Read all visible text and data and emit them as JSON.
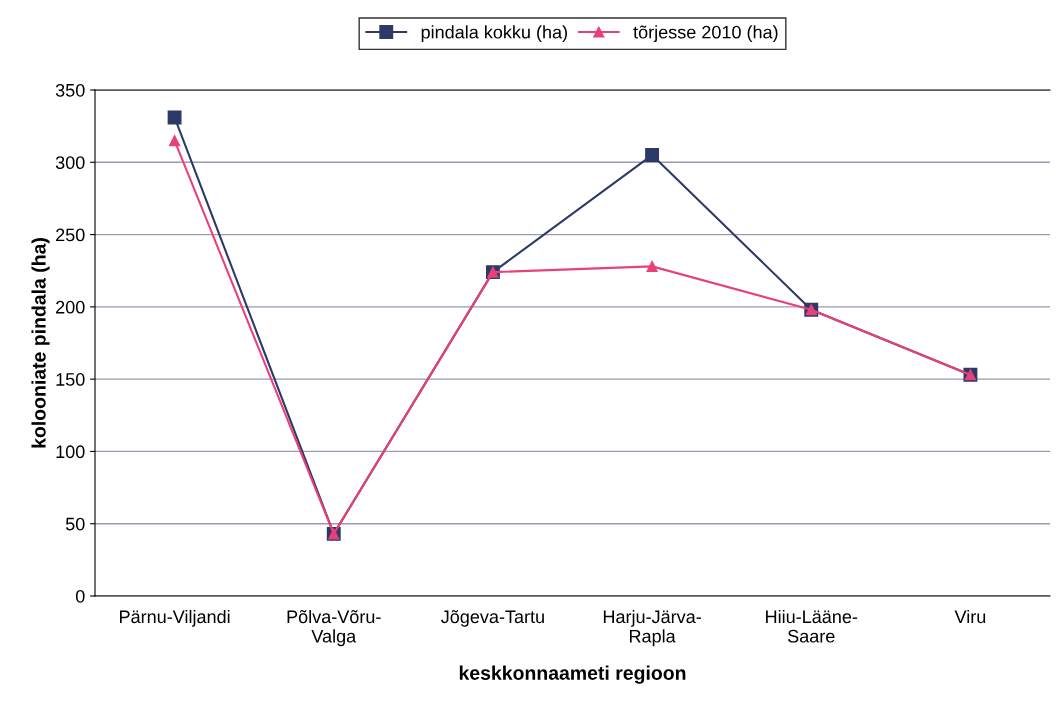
{
  "chart_data": {
    "type": "line",
    "xlabel": "keskkonnaameti regioon",
    "ylabel": "kolooniate pindala (ha)",
    "categories": [
      "Pärnu-Viljandi",
      "Põlva-Võru-\nValga",
      "Jõgeva-Tartu",
      "Harju-Järva-\nRapla",
      "Hiiu-Lääne-\nSaare",
      "Viru"
    ],
    "series": [
      {
        "name": "pindala kokku (ha)",
        "color": "#2b3a67",
        "marker": "square",
        "values": [
          331,
          43,
          224,
          305,
          198,
          153
        ]
      },
      {
        "name": "tõrjesse 2010 (ha)",
        "color": "#e8407a",
        "marker": "triangle",
        "values": [
          315,
          43,
          224,
          228,
          198,
          153
        ]
      }
    ],
    "ylim": [
      0,
      350
    ],
    "yticks": [
      0,
      50,
      100,
      150,
      200,
      250,
      300,
      350
    ],
    "grid": "y",
    "legend": "top",
    "line_style": "solid"
  }
}
